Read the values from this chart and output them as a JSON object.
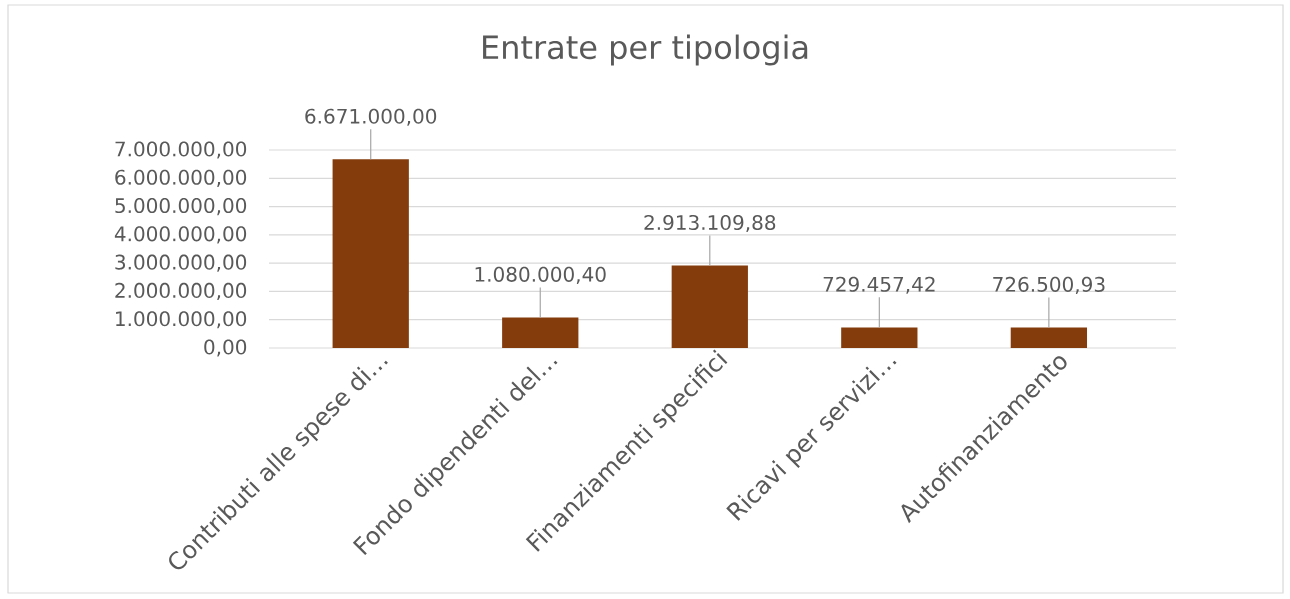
{
  "chart_data": {
    "type": "bar",
    "title": "Entrate per tipologia",
    "categories": [
      "Contributi alle spese di…",
      "Fondo dipendenti del…",
      "Finanziamenti specifici",
      "Ricavi per servizi…",
      "Autofinanziamento"
    ],
    "values": [
      6671000.0,
      1080000.4,
      2913109.88,
      729457.42,
      726500.93
    ],
    "value_labels": [
      "6.671.000,00",
      "1.080.000,40",
      "2.913.109,88",
      "729.457,42",
      "726.500,93"
    ],
    "color": "#843c0c",
    "ylim": [
      0,
      7000000
    ],
    "yticks": [
      {
        "value": 0,
        "label": "0,00"
      },
      {
        "value": 1000000,
        "label": "1.000.000,00"
      },
      {
        "value": 2000000,
        "label": "2.000.000,00"
      },
      {
        "value": 3000000,
        "label": "3.000.000,00"
      },
      {
        "value": 4000000,
        "label": "4.000.000,00"
      },
      {
        "value": 5000000,
        "label": "5.000.000,00"
      },
      {
        "value": 6000000,
        "label": "6.000.000,00"
      },
      {
        "value": 7000000,
        "label": "7.000.000,00"
      }
    ],
    "grid": "y"
  }
}
